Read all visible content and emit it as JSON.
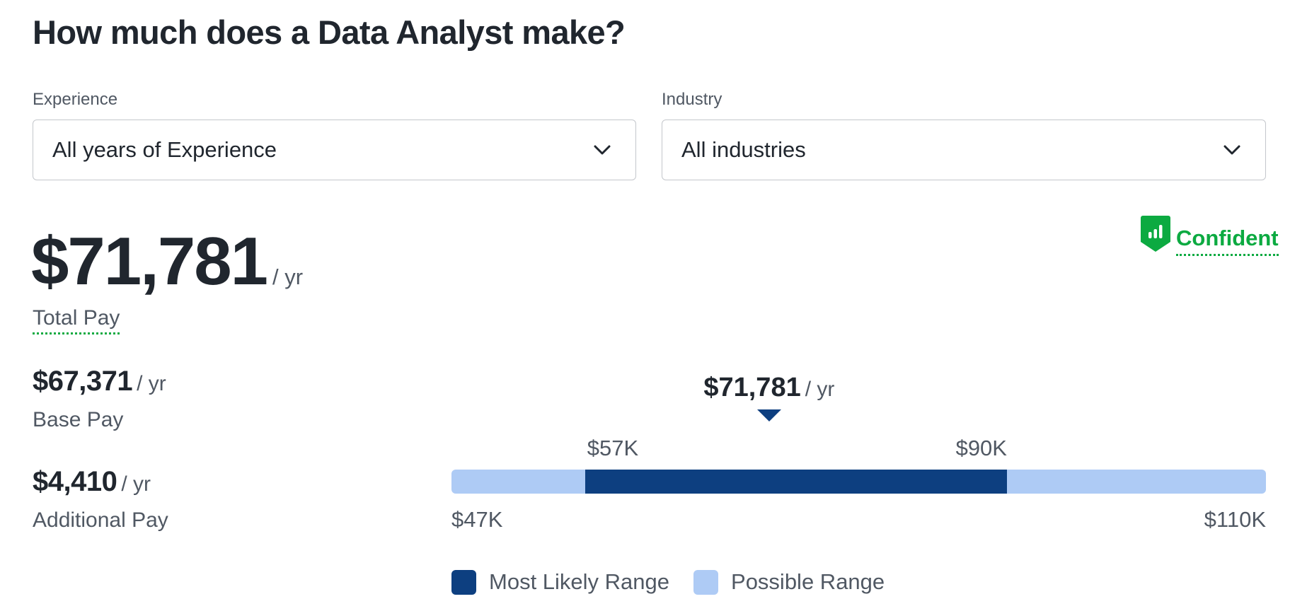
{
  "page": {
    "heading": "How much does a Data Analyst make?"
  },
  "filters": {
    "experience": {
      "label": "Experience",
      "value": "All years of Experience"
    },
    "industry": {
      "label": "Industry",
      "value": "All industries"
    }
  },
  "pay": {
    "total": {
      "amount": "$71,781",
      "unit": "/ yr",
      "label": "Total Pay"
    },
    "base": {
      "amount": "$67,371",
      "unit": "/ yr",
      "label": "Base Pay"
    },
    "additional": {
      "amount": "$4,410",
      "unit": "/ yr",
      "label": "Additional Pay"
    }
  },
  "confidence": {
    "label": "Confident",
    "icon": "shield-bar-chart-icon",
    "color": "#0caa41"
  },
  "colors": {
    "most_likely": "#0d3f80",
    "possible": "#aecbf5",
    "text_primary": "#20262e",
    "text_secondary": "#505863",
    "accent_green": "#0caa41"
  },
  "chart_data": {
    "type": "bar",
    "subtype": "range",
    "title": "",
    "range_min": {
      "value": 47000,
      "label": "$47K",
      "pos_pct": 0
    },
    "range_max": {
      "value": 110000,
      "label": "$110K",
      "pos_pct": 100
    },
    "most_likely_low": {
      "value": 57000,
      "label": "$57K",
      "pos_pct": 16.4
    },
    "most_likely_high": {
      "value": 90000,
      "label": "$90K",
      "pos_pct": 68.2
    },
    "marker": {
      "value": 71781,
      "label": "$71,781",
      "unit": "/ yr",
      "pos_pct": 39.0
    },
    "series": [
      {
        "name": "Most Likely Range",
        "values": [
          57000,
          90000
        ],
        "color": "#0d3f80"
      },
      {
        "name": "Possible Range",
        "values": [
          47000,
          110000
        ],
        "color": "#aecbf5"
      }
    ],
    "legend": [
      "Most Likely Range",
      "Possible Range"
    ],
    "legend_position": "bottom",
    "xlim": [
      47000,
      110000
    ],
    "grid": false
  }
}
